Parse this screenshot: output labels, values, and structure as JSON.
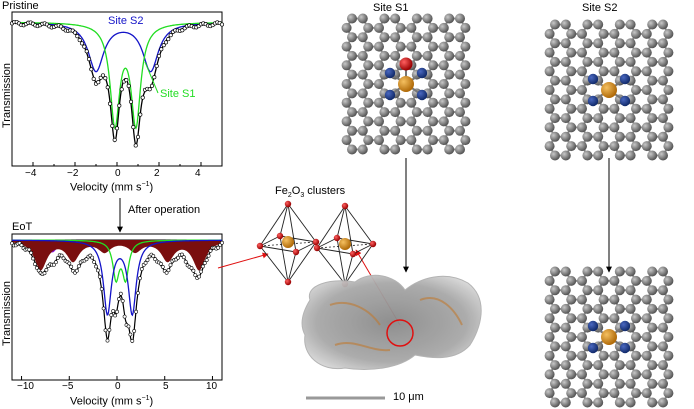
{
  "panels": {
    "top_plot": {
      "title": "Pristine",
      "ylabel": "Transmission",
      "xlabel_main": "Velocity (mm s",
      "xlabel_sup": "−1",
      "xlabel_end": ")",
      "site_s2_label": "Site S2",
      "site_s1_label": "Site S1",
      "x_ticks": [
        "−4",
        "−2",
        "0",
        "2",
        "4"
      ]
    },
    "bottom_plot": {
      "title": "EoT",
      "ylabel": "Transmission",
      "xlabel_main": "Velocity (mm s",
      "xlabel_sup": "−1",
      "xlabel_end": ")",
      "x_ticks": [
        "−10",
        "−5",
        "0",
        "5",
        "10"
      ]
    },
    "arrow_label": "After operation",
    "cluster_label_pre": "Fe",
    "cluster_label_sub1": "2",
    "cluster_label_mid": "O",
    "cluster_label_sub2": "3",
    "cluster_label_post": " clusters",
    "site_s1_title": "Site S1",
    "site_s2_title": "Site S2",
    "scale_bar": "10 μm"
  },
  "colors": {
    "fit_total": "#000000",
    "site_s1": "#22dd22",
    "site_s2": "#1414c8",
    "oxide_sextet": "#7a0e0e",
    "purple_sextet": "#8a10d8",
    "carbon_atom": "#707070",
    "nitrogen_atom": "#1e3a8a",
    "iron_atom": "#d88a1a",
    "oxygen_atom": "#c81414",
    "arrow_red": "#e01010"
  },
  "chart_data": [
    {
      "type": "line",
      "title": "Pristine",
      "xlabel": "Velocity (mm s−1)",
      "ylabel": "Transmission",
      "xlim": [
        -5,
        5
      ],
      "x_ticks": [
        -4,
        -2,
        0,
        2,
        4
      ],
      "series": [
        {
          "name": "Site S1",
          "kind": "doublet",
          "centers": [
            -0.1,
            0.9
          ]
        },
        {
          "name": "Site S2",
          "kind": "doublet",
          "centers": [
            -1.0,
            1.6
          ]
        }
      ]
    },
    {
      "type": "line",
      "title": "EoT",
      "xlabel": "Velocity (mm s−1)",
      "ylabel": "Transmission",
      "xlim": [
        -11,
        11
      ],
      "x_ticks": [
        -10,
        -5,
        0,
        5,
        10
      ],
      "series": [
        {
          "kind": "doublet",
          "centers": [
            -0.1,
            0.9
          ]
        },
        {
          "kind": "doublet",
          "centers": [
            -1.0,
            1.6
          ]
        },
        {
          "kind": "sextet",
          "lines": [
            -8.0,
            -4.6,
            -1.3,
            1.9,
            5.3,
            8.6
          ]
        },
        {
          "kind": "sextet",
          "lines": [
            -6.8,
            -4.0,
            -1.1,
            1.9,
            4.7,
            7.7
          ]
        }
      ]
    }
  ]
}
